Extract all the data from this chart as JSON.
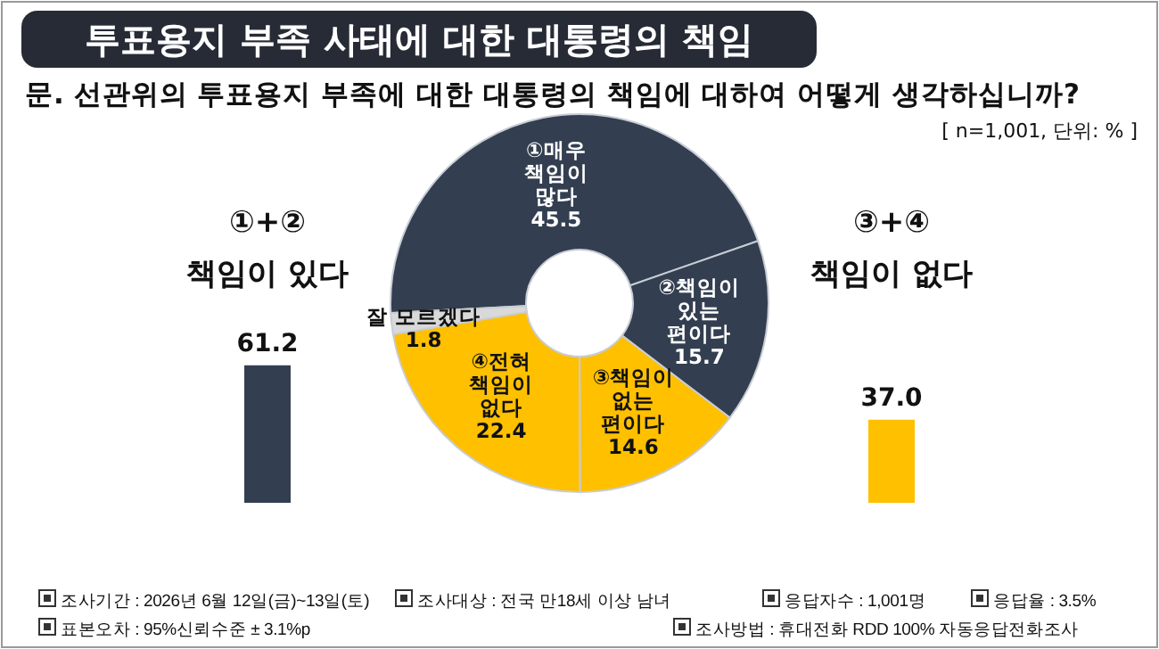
{
  "chart_data": [
    {
      "type": "donut",
      "title": "투표용지 부족 사태에 대한 대통령의 책임",
      "subtitle": "문. 선관위의 투표용지 부족에 대한 대통령의 책임에 대하여 어떻게 생각하십니까?",
      "categories": [
        "①매우 책임이 많다",
        "②책임이 있는 편이다",
        "③책임이 없는 편이다",
        "④전혀 책임이 없다",
        "잘 모르겠다"
      ],
      "values": [
        45.5,
        15.7,
        14.6,
        22.4,
        1.8
      ],
      "colors": [
        "#333f50",
        "#333f50",
        "#ffc000",
        "#ffc000",
        "#d9d9d9"
      ],
      "data_labels": true,
      "annotations": [
        "[ n=1,001, 단위: % ]",
        "조사기간 : 2026년 6월 12일(금)~13일(토)",
        "조사대상 : 전국 만18세 이상 남녀",
        "응답자수 : 1,001명",
        "응답율 : 3.5%",
        "표본오차 : 95%신뢰수준 ± 3.1%p",
        "조사방법 : 휴대전화 RDD 100% 자동응답전화조사"
      ]
    },
    {
      "type": "bar",
      "categories": [
        "①+② 책임이 있다",
        "③+④ 책임이 없다"
      ],
      "values": [
        61.2,
        37.0
      ],
      "colors": [
        "#333f50",
        "#ffc000"
      ],
      "value_labels": [
        "61.2",
        "37.0"
      ]
    }
  ]
}
